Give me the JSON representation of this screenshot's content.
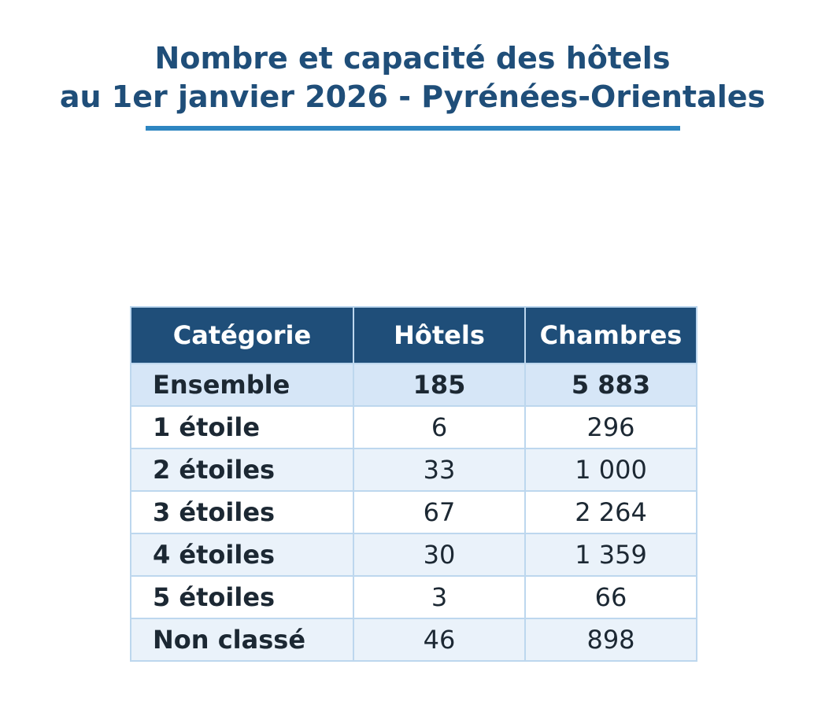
{
  "title_line1": "Nombre et capacité des hôtels",
  "title_line2": "au 1er janvier 2026 - Pyrénées-Orientales",
  "colors": {
    "title": "#1f4e79",
    "title_rule": "#2e86c1",
    "header_bg": "#1f4e79",
    "total_row_bg": "#d6e6f7",
    "alt_row_bg": "#eaf2fa",
    "grid": "#bdd7ee"
  },
  "chart_data": {
    "type": "table",
    "columns": [
      "Catégorie",
      "Hôtels",
      "Chambres"
    ],
    "rows": [
      {
        "categorie": "Ensemble",
        "hotels": "185",
        "chambres": "5 883"
      },
      {
        "categorie": "1 étoile",
        "hotels": "6",
        "chambres": "296"
      },
      {
        "categorie": "2 étoiles",
        "hotels": "33",
        "chambres": "1 000"
      },
      {
        "categorie": "3 étoiles",
        "hotels": "67",
        "chambres": "2 264"
      },
      {
        "categorie": "4 étoiles",
        "hotels": "30",
        "chambres": "1 359"
      },
      {
        "categorie": "5 étoiles",
        "hotels": "3",
        "chambres": "66"
      },
      {
        "categorie": "Non classé",
        "hotels": "46",
        "chambres": "898"
      }
    ]
  }
}
